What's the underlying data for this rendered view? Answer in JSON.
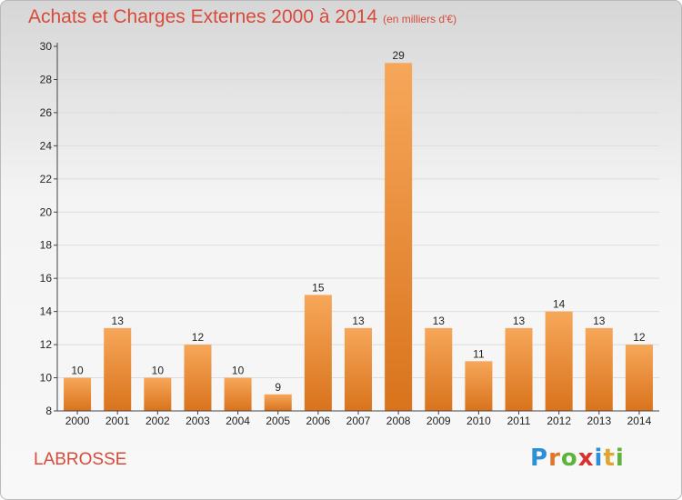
{
  "header": {
    "title": "Achats et Charges Externes 2000 à 2014",
    "subtitle": "(en milliers d'€)"
  },
  "footer": {
    "commune": "LABROSSE",
    "brand": {
      "letters": [
        "P",
        "r",
        "o",
        "x",
        "i",
        "t",
        "i"
      ],
      "colors": [
        "#2d8fd6",
        "#e0752c",
        "#5db33b",
        "#d93030",
        "#2d8fd6",
        "#e0a52c",
        "#5db33b"
      ]
    }
  },
  "colors": {
    "bar_top": "#f7a75a",
    "bar_bottom": "#d9731c",
    "axis": "#444444",
    "grid": "#dddddd",
    "text": "#222222"
  },
  "chart_data": {
    "type": "bar",
    "categories": [
      "2000",
      "2001",
      "2002",
      "2003",
      "2004",
      "2005",
      "2006",
      "2007",
      "2008",
      "2009",
      "2010",
      "2011",
      "2012",
      "2013",
      "2014"
    ],
    "values": [
      10,
      13,
      10,
      12,
      10,
      9,
      15,
      13,
      29,
      13,
      11,
      13,
      14,
      13,
      12
    ],
    "title": "Achats et Charges Externes 2000 à 2014",
    "xlabel": "",
    "ylabel": "",
    "ylim": [
      8,
      30
    ],
    "yticks": [
      8,
      10,
      12,
      14,
      16,
      18,
      20,
      22,
      24,
      26,
      28,
      30
    ],
    "grid": true,
    "legend": "none"
  }
}
